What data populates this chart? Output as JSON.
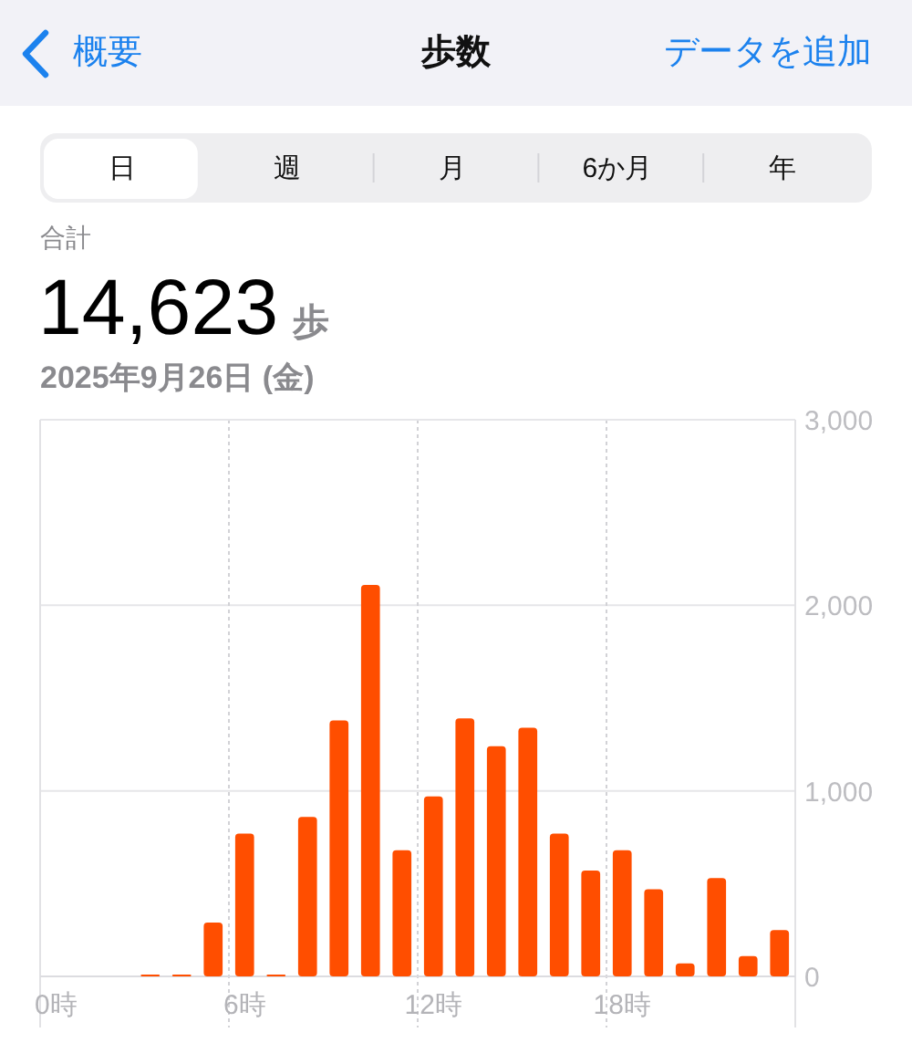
{
  "chart_data": {
    "type": "bar",
    "title": "歩数",
    "subtitle": "2025年9月26日 (金)",
    "annotations": [
      "概要",
      "データを追加",
      "日",
      "週",
      "月",
      "6か月",
      "年",
      "合計",
      "14,623",
      "歩"
    ],
    "categories": [
      "0時",
      null,
      null,
      null,
      null,
      null,
      "6時",
      null,
      null,
      null,
      null,
      null,
      "12時",
      null,
      null,
      null,
      null,
      null,
      "18時",
      null,
      null,
      null,
      null,
      null
    ],
    "values": [
      0,
      0,
      0,
      10,
      10,
      290,
      770,
      10,
      860,
      1380,
      2110,
      680,
      970,
      1390,
      1240,
      1340,
      770,
      570,
      680,
      470,
      70,
      530,
      110,
      250
    ],
    "color": "#ff4e00",
    "ylim": [
      0,
      3000
    ],
    "yticks": [
      {
        "value": 0,
        "label": "0"
      },
      {
        "value": 1000,
        "label": "1,000"
      },
      {
        "value": 2000,
        "label": "2,000"
      },
      {
        "value": 3000,
        "label": "3,000"
      }
    ],
    "grid": true
  }
}
